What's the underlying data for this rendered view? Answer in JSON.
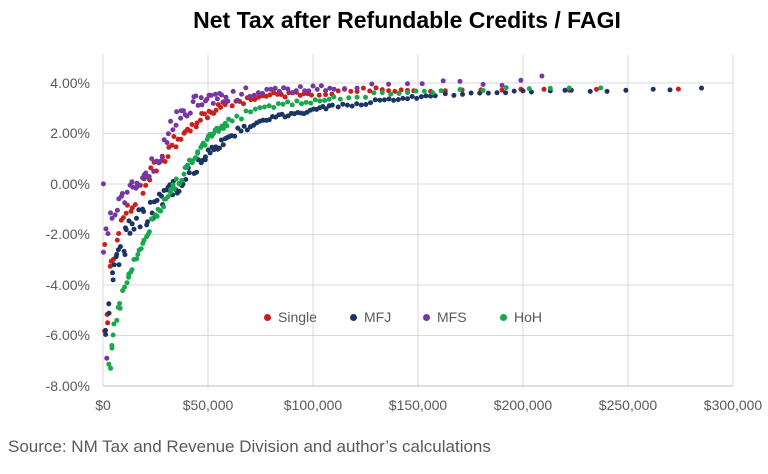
{
  "source_note": "Source: NM Tax and Revenue Division and author’s calculations",
  "chart_data": {
    "type": "scatter",
    "title": "Net Tax after Refundable Credits / FAGI",
    "xlabel": "",
    "ylabel": "",
    "grid": "both",
    "legend_position": "bottom-center-inside",
    "x_axis": {
      "min": 0,
      "max": 300000,
      "ticks": [
        {
          "label": "$0",
          "value": 0
        },
        {
          "label": "$50,000",
          "value": 50000
        },
        {
          "label": "$100,000",
          "value": 100000
        },
        {
          "label": "$150,000",
          "value": 150000
        },
        {
          "label": "$200,000",
          "value": 200000
        },
        {
          "label": "$250,000",
          "value": 250000
        },
        {
          "label": "$300,000",
          "value": 300000
        }
      ]
    },
    "y_axis": {
      "min": -8,
      "max": 5.1,
      "ticks": [
        {
          "label": "4.00%",
          "value": 4
        },
        {
          "label": "2.00%",
          "value": 2
        },
        {
          "label": "0.00%",
          "value": 0
        },
        {
          "label": "-2.00%",
          "value": -2
        },
        {
          "label": "-4.00%",
          "value": -4
        },
        {
          "label": "-6.00%",
          "value": -6
        },
        {
          "label": "-8.00%",
          "value": -8
        }
      ]
    },
    "grid_color": "#D9D9D9",
    "axis_line_color": "#BFBFBF",
    "text_color": "#595959",
    "series": [
      {
        "name": "Single",
        "color": "#C9201B",
        "seed": 11,
        "dense": [
          [
            1,
            60,
            1.1
          ],
          [
            61.5,
            100,
            1.8
          ],
          [
            103,
            150,
            3
          ]
        ],
        "sparse": [
          156,
          163,
          171,
          180,
          190,
          199,
          210,
          222,
          235,
          274
        ],
        "outliers": [
          [
            0.8,
            -2.4
          ],
          [
            2.2,
            -5.5
          ]
        ],
        "noise": [
          [
            6,
            0.5
          ],
          [
            20,
            0.35
          ],
          [
            40,
            0.3
          ],
          [
            70,
            0.18
          ],
          [
            130,
            0.12
          ],
          [
            999,
            0.06
          ]
        ],
        "anchors": [
          [
            1,
            -5.6
          ],
          [
            2,
            -4.7
          ],
          [
            3,
            -3.9
          ],
          [
            4,
            -3.2
          ],
          [
            5,
            -2.7
          ],
          [
            6,
            -2.3
          ],
          [
            8,
            -1.7
          ],
          [
            10,
            -1.25
          ],
          [
            12,
            -0.95
          ],
          [
            15,
            -0.55
          ],
          [
            18,
            -0.2
          ],
          [
            21,
            0.2
          ],
          [
            24,
            0.55
          ],
          [
            27,
            0.9
          ],
          [
            30,
            1.2
          ],
          [
            34,
            1.6
          ],
          [
            38,
            1.95
          ],
          [
            42,
            2.25
          ],
          [
            46,
            2.55
          ],
          [
            50,
            2.8
          ],
          [
            55,
            3.0
          ],
          [
            60,
            3.15
          ],
          [
            66,
            3.3
          ],
          [
            72,
            3.4
          ],
          [
            80,
            3.5
          ],
          [
            90,
            3.55
          ],
          [
            100,
            3.62
          ],
          [
            115,
            3.67
          ],
          [
            130,
            3.7
          ],
          [
            150,
            3.7
          ],
          [
            180,
            3.72
          ],
          [
            210,
            3.73
          ],
          [
            240,
            3.74
          ],
          [
            274,
            3.75
          ]
        ]
      },
      {
        "name": "MFJ",
        "color": "#1C3461",
        "seed": 22,
        "dense": [
          [
            1.5,
            60,
            0.9
          ],
          [
            61.2,
            110,
            1.5
          ],
          [
            112,
            160,
            2.2
          ],
          [
            163,
            196,
            4.1
          ]
        ],
        "sparse": [
          200,
          204,
          213,
          220,
          223,
          232,
          240,
          249,
          262,
          270,
          285
        ],
        "outliers": [
          [
            1.2,
            -5.8
          ],
          [
            4.8,
            -3.8
          ],
          [
            7.6,
            -3.2
          ],
          [
            10.5,
            -2.8
          ]
        ],
        "noise": [
          [
            6,
            0.5
          ],
          [
            25,
            0.55
          ],
          [
            45,
            0.35
          ],
          [
            70,
            0.15
          ],
          [
            130,
            0.08
          ],
          [
            999,
            0.05
          ]
        ],
        "anchors": [
          [
            1,
            -5.9
          ],
          [
            2.5,
            -4.9
          ],
          [
            4,
            -4.0
          ],
          [
            6,
            -3.3
          ],
          [
            8,
            -2.7
          ],
          [
            10,
            -2.3
          ],
          [
            12,
            -2.05
          ],
          [
            14,
            -1.8
          ],
          [
            17,
            -1.5
          ],
          [
            20,
            -1.2
          ],
          [
            24,
            -0.9
          ],
          [
            28,
            -0.6
          ],
          [
            32,
            -0.3
          ],
          [
            36,
            -0.05
          ],
          [
            39,
            0.25
          ],
          [
            42,
            0.55
          ],
          [
            45,
            0.8
          ],
          [
            48,
            1.05
          ],
          [
            52,
            1.35
          ],
          [
            56,
            1.6
          ],
          [
            60,
            1.85
          ],
          [
            65,
            2.1
          ],
          [
            70,
            2.3
          ],
          [
            76,
            2.5
          ],
          [
            82,
            2.65
          ],
          [
            88,
            2.75
          ],
          [
            95,
            2.85
          ],
          [
            102,
            2.95
          ],
          [
            110,
            3.05
          ],
          [
            120,
            3.15
          ],
          [
            132,
            3.3
          ],
          [
            145,
            3.4
          ],
          [
            160,
            3.5
          ],
          [
            175,
            3.6
          ],
          [
            190,
            3.65
          ],
          [
            205,
            3.68
          ],
          [
            222,
            3.7
          ],
          [
            240,
            3.7
          ],
          [
            249,
            3.72
          ],
          [
            262,
            3.73
          ],
          [
            285,
            3.75
          ]
        ]
      },
      {
        "name": "MFS",
        "color": "#7636A3",
        "seed": 33,
        "dense": [
          [
            0.5,
            60,
            1.0
          ],
          [
            62,
            110,
            2.0
          ]
        ],
        "sparse": [
          115,
          121,
          128,
          136,
          145,
          152,
          162,
          170,
          181,
          190,
          199,
          209
        ],
        "outliers": [
          [
            0.2,
            0.0
          ],
          [
            1.8,
            -6.9
          ]
        ],
        "noise": [
          [
            6,
            0.45
          ],
          [
            20,
            0.3
          ],
          [
            45,
            0.4
          ],
          [
            70,
            0.25
          ],
          [
            130,
            0.12
          ],
          [
            999,
            0.08
          ]
        ],
        "anchors": [
          [
            0.5,
            -2.5
          ],
          [
            2,
            -1.9
          ],
          [
            3,
            -1.6
          ],
          [
            4,
            -1.4
          ],
          [
            5,
            -1.2
          ],
          [
            7,
            -0.9
          ],
          [
            9,
            -0.65
          ],
          [
            11,
            -0.45
          ],
          [
            13,
            -0.25
          ],
          [
            15,
            -0.05
          ],
          [
            17,
            0.2
          ],
          [
            20,
            0.45
          ],
          [
            23,
            0.65
          ],
          [
            25,
            0.8
          ],
          [
            27,
            1.1
          ],
          [
            29,
            1.5
          ],
          [
            31,
            1.9
          ],
          [
            33,
            2.2
          ],
          [
            35,
            2.55
          ],
          [
            37,
            2.8
          ],
          [
            40,
            3.0
          ],
          [
            44,
            3.15
          ],
          [
            48,
            3.25
          ],
          [
            52,
            3.35
          ],
          [
            56,
            3.45
          ],
          [
            60,
            3.5
          ],
          [
            66,
            3.55
          ],
          [
            72,
            3.62
          ],
          [
            80,
            3.68
          ],
          [
            90,
            3.72
          ],
          [
            100,
            3.78
          ],
          [
            110,
            3.82
          ],
          [
            125,
            3.85
          ],
          [
            140,
            3.9
          ],
          [
            152,
            4.0
          ],
          [
            162,
            4.05
          ],
          [
            175,
            3.95
          ],
          [
            190,
            3.95
          ],
          [
            209,
            4.2
          ]
        ]
      },
      {
        "name": "HoH",
        "color": "#17A84E",
        "seed": 44,
        "dense": [
          [
            3,
            60,
            0.8
          ],
          [
            61.5,
            110,
            2.2
          ],
          [
            113,
            158,
            4
          ]
        ],
        "sparse": [
          161,
          170,
          181,
          192,
          203,
          213,
          222,
          237
        ],
        "outliers": [
          [
            3.6,
            -7.3
          ],
          [
            4.3,
            -6.5
          ]
        ],
        "noise": [
          [
            6,
            0.3
          ],
          [
            20,
            0.18
          ],
          [
            45,
            0.2
          ],
          [
            70,
            0.12
          ],
          [
            130,
            0.1
          ],
          [
            999,
            0.06
          ]
        ],
        "anchors": [
          [
            3,
            -7.0
          ],
          [
            4,
            -6.4
          ],
          [
            5,
            -5.9
          ],
          [
            6,
            -5.5
          ],
          [
            7,
            -5.1
          ],
          [
            8,
            -4.8
          ],
          [
            9,
            -4.5
          ],
          [
            10,
            -4.2
          ],
          [
            11,
            -3.95
          ],
          [
            12,
            -3.7
          ],
          [
            13,
            -3.5
          ],
          [
            15,
            -3.05
          ],
          [
            17,
            -2.6
          ],
          [
            19,
            -2.25
          ],
          [
            21,
            -1.9
          ],
          [
            24,
            -1.45
          ],
          [
            27,
            -1.05
          ],
          [
            30,
            -0.65
          ],
          [
            33,
            -0.25
          ],
          [
            36,
            0.15
          ],
          [
            39,
            0.5
          ],
          [
            42,
            0.85
          ],
          [
            45,
            1.2
          ],
          [
            48,
            1.55
          ],
          [
            50,
            1.75
          ],
          [
            52,
            1.95
          ],
          [
            56,
            2.2
          ],
          [
            60,
            2.45
          ],
          [
            65,
            2.65
          ],
          [
            70,
            2.85
          ],
          [
            76,
            3.0
          ],
          [
            82,
            3.1
          ],
          [
            90,
            3.2
          ],
          [
            100,
            3.3
          ],
          [
            112,
            3.4
          ],
          [
            125,
            3.5
          ],
          [
            140,
            3.6
          ],
          [
            155,
            3.65
          ],
          [
            175,
            3.72
          ],
          [
            192,
            3.75
          ],
          [
            203,
            3.77
          ],
          [
            222,
            3.75
          ],
          [
            237,
            3.8
          ]
        ]
      }
    ],
    "legend_items_x": [
      264,
      350,
      423,
      500
    ]
  }
}
